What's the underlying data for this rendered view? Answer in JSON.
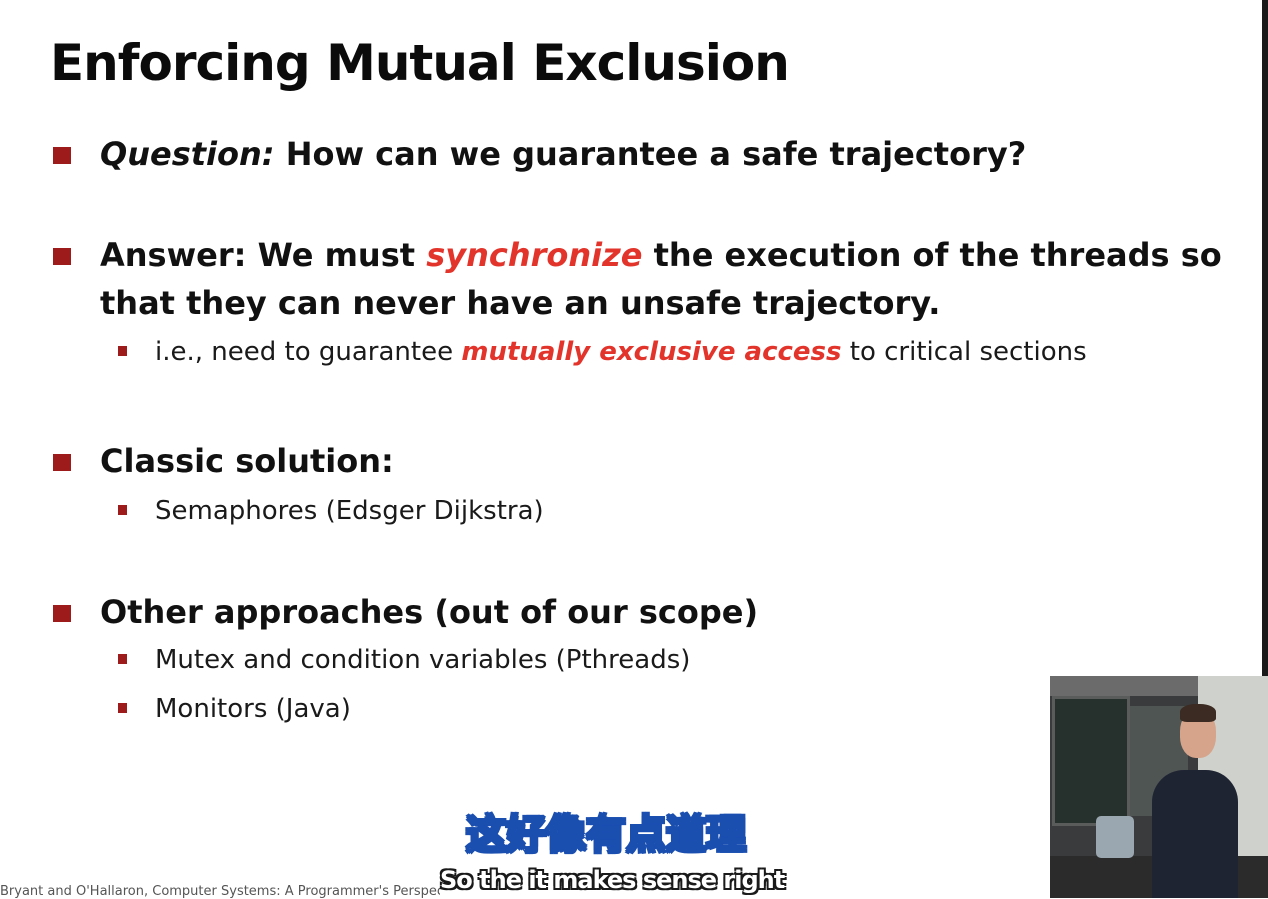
{
  "slide": {
    "title": "Enforcing Mutual Exclusion",
    "b1": {
      "label": "Question:",
      "rest": " How can we guarantee a safe trajectory?"
    },
    "b2": {
      "pre": "Answer: We must ",
      "highlight": "synchronize",
      "post": " the execution of the threads so",
      "line2": "that they can never have an unsafe trajectory."
    },
    "b2_sub": {
      "pre": "i.e., need to guarantee ",
      "highlight": "mutually exclusive access",
      "post": " to critical sections"
    },
    "b3": {
      "label": "Classic solution:"
    },
    "b3_sub": {
      "text": "Semaphores (Edsger Dijkstra)"
    },
    "b4": {
      "label": "Other approaches (out of our scope)"
    },
    "b4_subs": [
      "Mutex and condition variables (Pthreads)",
      "Monitors (Java)"
    ],
    "footer": "Bryant and O'Hallaron, Computer Systems: A Programmer's Perspective"
  },
  "subtitles": {
    "chinese": "这好像有点道理",
    "english": "So the it makes sense right"
  },
  "colors": {
    "accent_red": "#e3342b",
    "bullet_red": "#9e1b1b"
  }
}
